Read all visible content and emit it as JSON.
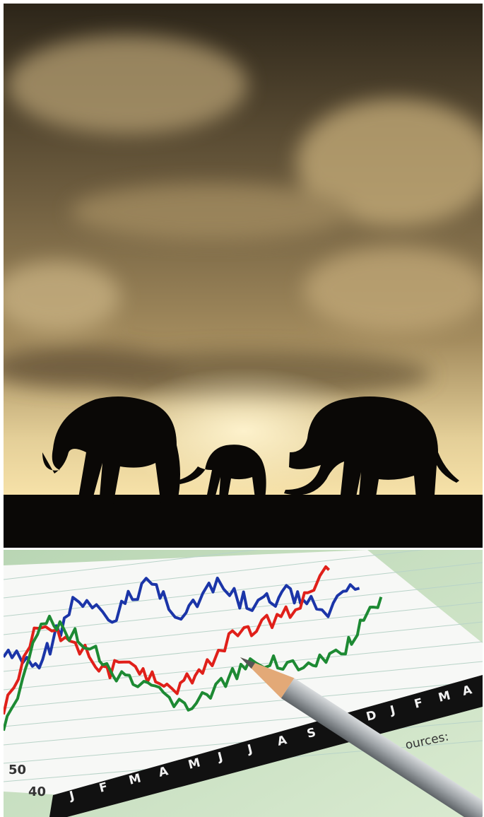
{
  "chart_photo": {
    "lower_months": [
      "J",
      "F",
      "M",
      "A",
      "M",
      "J",
      "J",
      "A",
      "S"
    ],
    "upper_months": [
      "D",
      "J",
      "F",
      "M",
      "A"
    ],
    "axis_numbers": [
      "50",
      "40"
    ],
    "fragment": "ources:"
  }
}
